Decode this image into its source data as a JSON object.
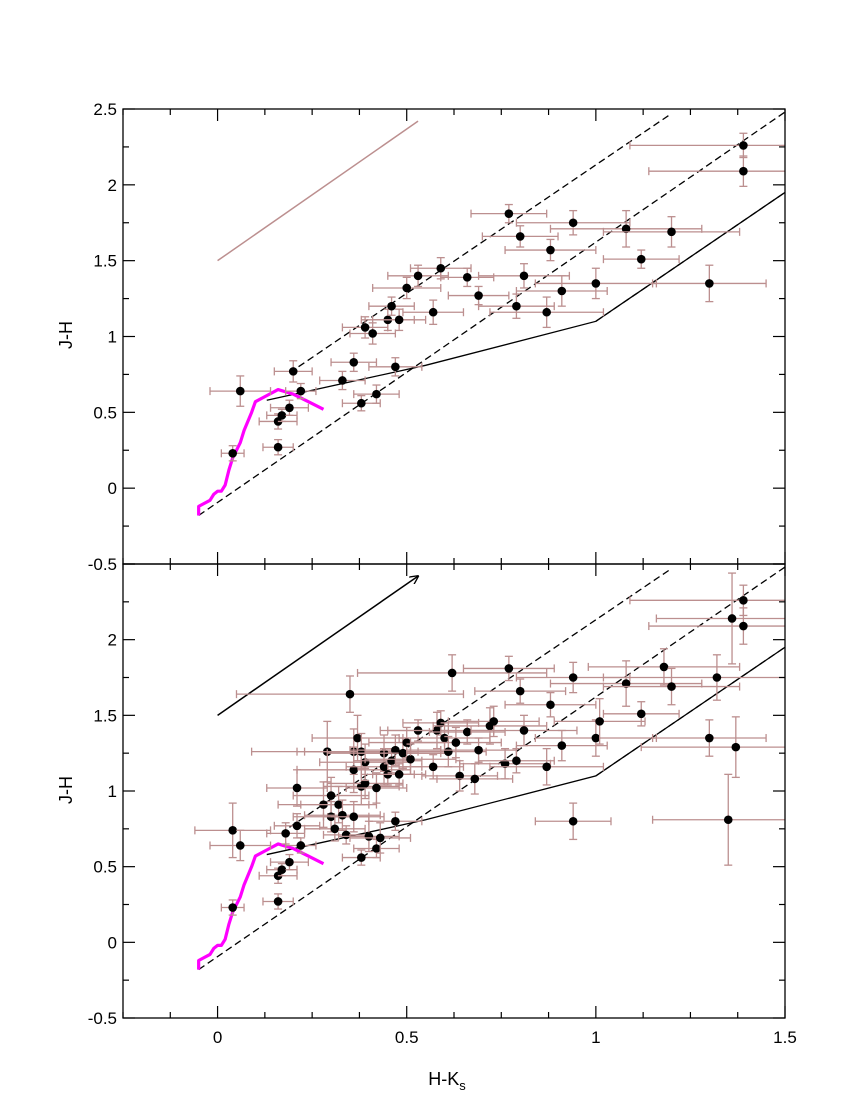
{
  "chart_data": {
    "type": "scatter",
    "xlabel": "H-K",
    "xlabel_sub": "s",
    "ylabel": "J-H",
    "xlim": [
      -0.25,
      1.5
    ],
    "ylim": [
      -0.5,
      2.5
    ],
    "xticks": [
      0,
      0.5,
      1,
      1.5
    ],
    "xtick_labels": [
      "0",
      "0.5",
      "1",
      "1.5"
    ],
    "yticks": [
      -0.5,
      0,
      0.5,
      1,
      1.5,
      2,
      2.5
    ],
    "ytick_labels_top": [
      "-0.5",
      "0",
      "0.5",
      "1",
      "1.5",
      "2",
      "2.5"
    ],
    "ytick_labels_bottom": [
      "-0.5",
      "0",
      "0.5",
      "1",
      "1.5",
      "2"
    ],
    "main_sequence": [
      [
        -0.05,
        -0.18
      ],
      [
        -0.05,
        -0.12
      ],
      [
        -0.02,
        -0.08
      ],
      [
        -0.01,
        -0.04
      ],
      [
        0.0,
        -0.02
      ],
      [
        0.01,
        -0.02
      ],
      [
        0.02,
        0.02
      ],
      [
        0.03,
        0.12
      ],
      [
        0.04,
        0.2
      ],
      [
        0.06,
        0.3
      ],
      [
        0.07,
        0.38
      ],
      [
        0.09,
        0.5
      ],
      [
        0.1,
        0.57
      ],
      [
        0.13,
        0.61
      ],
      [
        0.16,
        0.65
      ],
      [
        0.2,
        0.62
      ],
      [
        0.24,
        0.57
      ],
      [
        0.28,
        0.52
      ]
    ],
    "ctts_locus": [
      [
        0.13,
        0.58
      ],
      [
        0.55,
        0.81
      ],
      [
        1.0,
        1.1
      ],
      [
        1.5,
        1.95
      ]
    ],
    "reddening_band_lines": [
      [
        [
          -0.05,
          -0.18
        ],
        [
          1.5,
          2.48
        ]
      ],
      [
        [
          0.19,
          0.76
        ],
        [
          1.2,
          2.47
        ]
      ],
      [
        [
          1.0,
          1.1
        ],
        [
          1.5,
          1.95
        ]
      ]
    ],
    "reddening_vector_top": [
      [
        0.0,
        1.5
      ],
      [
        0.53,
        2.42
      ]
    ],
    "reddening_vector_bottom": [
      [
        0.0,
        1.5
      ],
      [
        0.53,
        2.42
      ]
    ],
    "panels": [
      {
        "name": "top",
        "points": [
          [
            0.06,
            0.64,
            0.08,
            0.1
          ],
          [
            0.04,
            0.23,
            0.03,
            0.05
          ],
          [
            0.16,
            0.27,
            0.04,
            0.05
          ],
          [
            0.2,
            0.77,
            0.05,
            0.07
          ],
          [
            0.22,
            0.64,
            0.04,
            0.05
          ],
          [
            0.16,
            0.44,
            0.05,
            0.05
          ],
          [
            0.17,
            0.48,
            0.04,
            0.04
          ],
          [
            0.19,
            0.53,
            0.05,
            0.05
          ],
          [
            0.33,
            0.71,
            0.06,
            0.06
          ],
          [
            0.36,
            0.83,
            0.06,
            0.06
          ],
          [
            0.38,
            0.56,
            0.05,
            0.05
          ],
          [
            0.42,
            0.62,
            0.06,
            0.06
          ],
          [
            0.39,
            1.06,
            0.06,
            0.07
          ],
          [
            0.41,
            1.02,
            0.06,
            0.07
          ],
          [
            0.45,
            1.11,
            0.07,
            0.07
          ],
          [
            0.46,
            1.2,
            0.06,
            0.06
          ],
          [
            0.48,
            1.11,
            0.07,
            0.07
          ],
          [
            0.5,
            1.32,
            0.09,
            0.07
          ],
          [
            0.53,
            1.4,
            0.08,
            0.07
          ],
          [
            0.57,
            1.16,
            0.08,
            0.08
          ],
          [
            0.47,
            0.8,
            0.07,
            0.06
          ],
          [
            0.59,
            1.45,
            0.08,
            0.07
          ],
          [
            0.66,
            1.39,
            0.07,
            0.06
          ],
          [
            0.69,
            1.27,
            0.08,
            0.06
          ],
          [
            0.77,
            1.81,
            0.1,
            0.06
          ],
          [
            0.8,
            1.66,
            0.1,
            0.07
          ],
          [
            0.79,
            1.2,
            0.1,
            0.08
          ],
          [
            0.81,
            1.4,
            0.12,
            0.08
          ],
          [
            0.87,
            1.16,
            0.15,
            0.1
          ],
          [
            0.88,
            1.57,
            0.12,
            0.07
          ],
          [
            0.91,
            1.3,
            0.12,
            0.1
          ],
          [
            0.94,
            1.75,
            0.15,
            0.08
          ],
          [
            1.0,
            1.35,
            0.16,
            0.1
          ],
          [
            1.08,
            1.71,
            0.2,
            0.12
          ],
          [
            1.12,
            1.51,
            0.1,
            0.06
          ],
          [
            1.2,
            1.69,
            0.18,
            0.1
          ],
          [
            1.3,
            1.35,
            0.15,
            0.12
          ],
          [
            1.39,
            2.26,
            0.3,
            0.08
          ],
          [
            1.39,
            2.09,
            0.25,
            0.1
          ]
        ]
      },
      {
        "name": "bottom",
        "points": [
          [
            0.04,
            0.74,
            0.1,
            0.18
          ],
          [
            0.06,
            0.64,
            0.08,
            0.1
          ],
          [
            0.04,
            0.23,
            0.03,
            0.05
          ],
          [
            0.16,
            0.27,
            0.04,
            0.05
          ],
          [
            0.16,
            0.44,
            0.05,
            0.05
          ],
          [
            0.17,
            0.48,
            0.04,
            0.04
          ],
          [
            0.18,
            0.72,
            0.05,
            0.07
          ],
          [
            0.19,
            0.53,
            0.05,
            0.05
          ],
          [
            0.21,
            0.77,
            0.06,
            0.08
          ],
          [
            0.21,
            1.02,
            0.08,
            0.12
          ],
          [
            0.22,
            0.64,
            0.04,
            0.05
          ],
          [
            0.28,
            0.91,
            0.12,
            0.15
          ],
          [
            0.29,
            1.26,
            0.2,
            0.2
          ],
          [
            0.3,
            0.97,
            0.1,
            0.12
          ],
          [
            0.3,
            0.83,
            0.1,
            0.1
          ],
          [
            0.31,
            0.75,
            0.08,
            0.08
          ],
          [
            0.32,
            0.91,
            0.1,
            0.12
          ],
          [
            0.33,
            0.84,
            0.1,
            0.1
          ],
          [
            0.34,
            0.71,
            0.06,
            0.06
          ],
          [
            0.35,
            1.64,
            0.3,
            0.12
          ],
          [
            0.36,
            1.26,
            0.15,
            0.15
          ],
          [
            0.36,
            0.83,
            0.08,
            0.1
          ],
          [
            0.36,
            1.14,
            0.15,
            0.15
          ],
          [
            0.37,
            1.35,
            0.12,
            0.15
          ],
          [
            0.38,
            1.26,
            0.15,
            0.12
          ],
          [
            0.38,
            1.03,
            0.1,
            0.12
          ],
          [
            0.38,
            0.56,
            0.05,
            0.05
          ],
          [
            0.39,
            1.05,
            0.1,
            0.1
          ],
          [
            0.39,
            1.19,
            0.12,
            0.12
          ],
          [
            0.4,
            0.7,
            0.08,
            0.1
          ],
          [
            0.42,
            0.62,
            0.06,
            0.06
          ],
          [
            0.42,
            1.02,
            0.08,
            0.1
          ],
          [
            0.43,
            0.69,
            0.08,
            0.1
          ],
          [
            0.44,
            1.25,
            0.15,
            0.12
          ],
          [
            0.44,
            1.16,
            0.1,
            0.12
          ],
          [
            0.45,
            1.11,
            0.07,
            0.07
          ],
          [
            0.46,
            1.2,
            0.08,
            0.08
          ],
          [
            0.47,
            1.27,
            0.12,
            0.1
          ],
          [
            0.47,
            0.8,
            0.07,
            0.06
          ],
          [
            0.48,
            1.11,
            0.07,
            0.07
          ],
          [
            0.49,
            1.25,
            0.12,
            0.1
          ],
          [
            0.5,
            1.32,
            0.1,
            0.1
          ],
          [
            0.51,
            1.21,
            0.12,
            0.1
          ],
          [
            0.53,
            1.4,
            0.08,
            0.07
          ],
          [
            0.57,
            1.16,
            0.08,
            0.08
          ],
          [
            0.58,
            1.4,
            0.15,
            0.12
          ],
          [
            0.59,
            1.45,
            0.1,
            0.08
          ],
          [
            0.6,
            1.35,
            0.12,
            0.1
          ],
          [
            0.61,
            1.26,
            0.1,
            0.1
          ],
          [
            0.62,
            1.78,
            0.25,
            0.12
          ],
          [
            0.63,
            1.32,
            0.12,
            0.1
          ],
          [
            0.64,
            1.1,
            0.1,
            0.1
          ],
          [
            0.66,
            1.39,
            0.1,
            0.08
          ],
          [
            0.68,
            1.08,
            0.1,
            0.1
          ],
          [
            0.69,
            1.27,
            0.1,
            0.08
          ],
          [
            0.72,
            1.43,
            0.15,
            0.12
          ],
          [
            0.73,
            1.46,
            0.12,
            0.1
          ],
          [
            0.76,
            1.18,
            0.12,
            0.1
          ],
          [
            0.77,
            1.81,
            0.12,
            0.08
          ],
          [
            0.79,
            1.2,
            0.1,
            0.08
          ],
          [
            0.8,
            1.66,
            0.12,
            0.08
          ],
          [
            0.81,
            1.4,
            0.14,
            0.1
          ],
          [
            0.87,
            1.16,
            0.15,
            0.12
          ],
          [
            0.88,
            1.57,
            0.12,
            0.08
          ],
          [
            0.91,
            1.3,
            0.12,
            0.1
          ],
          [
            0.94,
            1.75,
            0.15,
            0.1
          ],
          [
            0.94,
            0.8,
            0.1,
            0.12
          ],
          [
            1.0,
            1.35,
            0.16,
            0.12
          ],
          [
            1.01,
            1.46,
            0.12,
            0.15
          ],
          [
            1.08,
            1.71,
            0.2,
            0.15
          ],
          [
            1.12,
            1.51,
            0.1,
            0.08
          ],
          [
            1.18,
            1.82,
            0.2,
            0.12
          ],
          [
            1.2,
            1.69,
            0.18,
            0.12
          ],
          [
            1.3,
            1.35,
            0.15,
            0.12
          ],
          [
            1.32,
            1.75,
            0.3,
            0.15
          ],
          [
            1.35,
            0.81,
            0.2,
            0.3
          ],
          [
            1.36,
            2.14,
            0.2,
            0.3
          ],
          [
            1.37,
            1.29,
            0.25,
            0.2
          ],
          [
            1.39,
            2.26,
            0.3,
            0.1
          ],
          [
            1.39,
            2.09,
            0.25,
            0.12
          ]
        ]
      }
    ]
  }
}
